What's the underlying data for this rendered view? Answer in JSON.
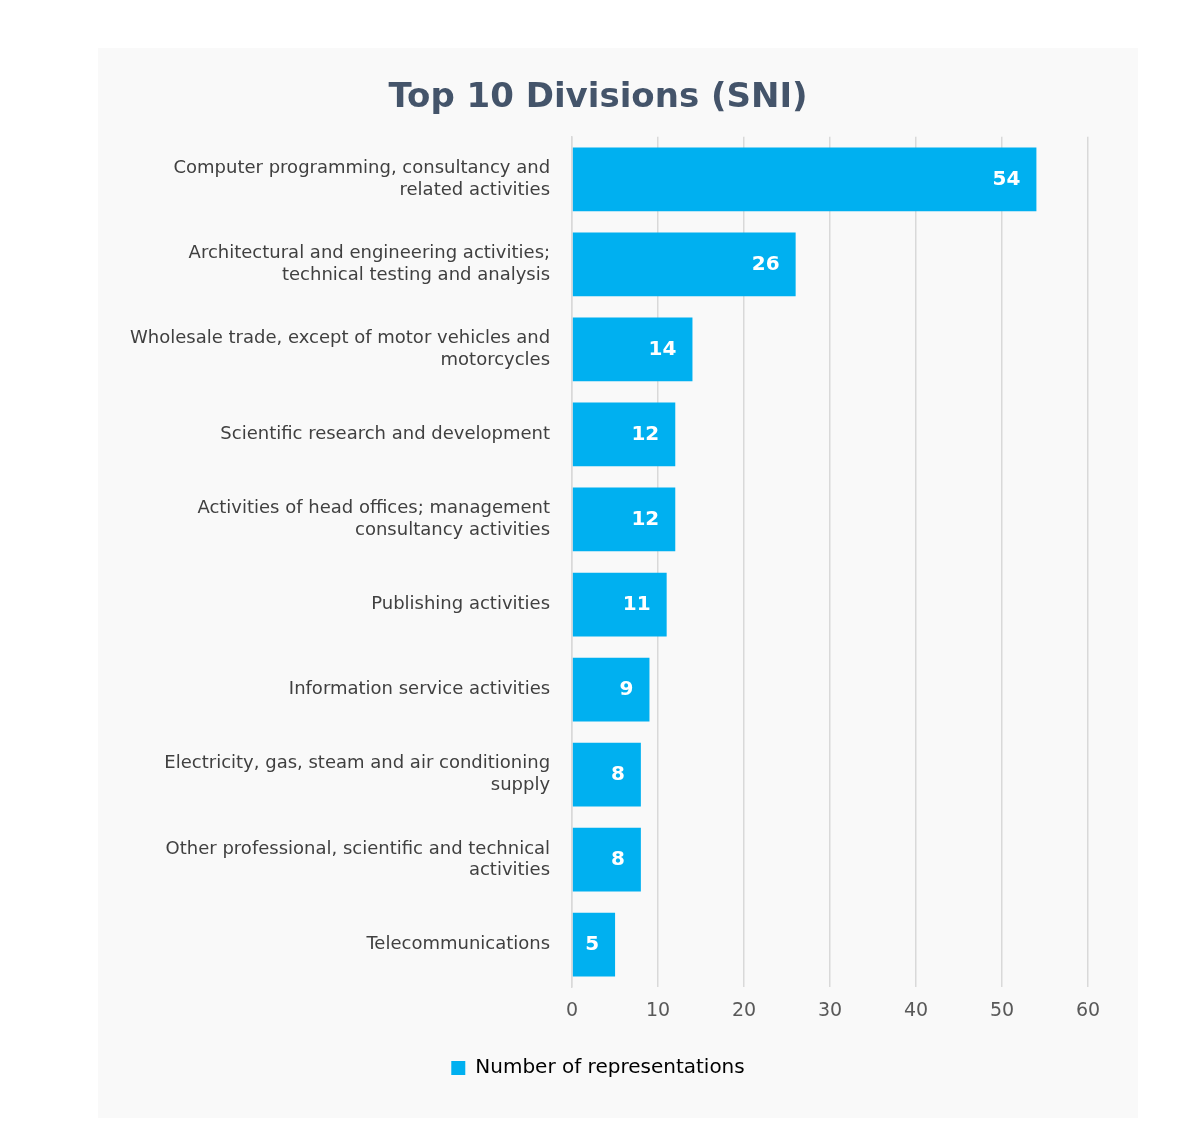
{
  "chart_data": {
    "type": "bar",
    "title": "Top 10 Divisions (SNI)",
    "orientation": "horizontal",
    "categories": [
      "Computer programming, consultancy and related activities",
      "Architectural and engineering activities; technical testing and analysis",
      "Wholesale trade, except of motor vehicles and motorcycles",
      "Scientific research and development",
      "Activities of head offices; management consultancy activities",
      "Publishing activities",
      "Information service activities",
      "Electricity, gas, steam and air conditioning supply",
      "Other professional, scientific and technical activities",
      "Telecommunications"
    ],
    "series": [
      {
        "name": "Number of representations",
        "color": "#00b0f0",
        "values": [
          54,
          26,
          14,
          12,
          12,
          11,
          9,
          8,
          8,
          5
        ]
      }
    ],
    "xlim": [
      0,
      60
    ],
    "xticks": [
      0,
      10,
      20,
      30,
      40,
      50,
      60
    ],
    "grid": "x",
    "legend": "bottom",
    "data_labels": true
  }
}
